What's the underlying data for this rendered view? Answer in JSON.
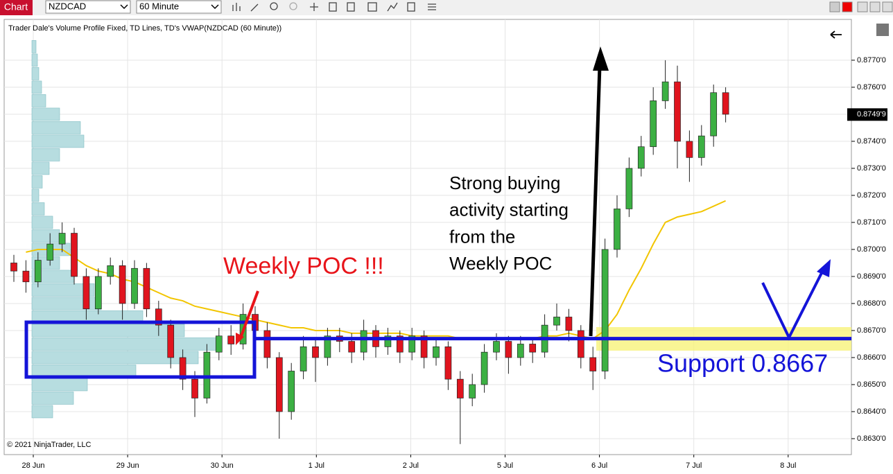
{
  "toolbar": {
    "tab": "Chart",
    "symbol": "NZDCAD",
    "interval": "60 Minute"
  },
  "copyright": "© 2021 NinjaTrader, LLC",
  "chart_data": {
    "type": "candlestick",
    "title": "Trader Dale's Volume Profile Fixed, TD Lines, TD's VWAP(NZDCAD (60 Minute))",
    "xtick_labels": [
      "28 Jun",
      "29 Jun",
      "30 Jun",
      "1 Jul",
      "2 Jul",
      "5 Jul",
      "6 Jul",
      "7 Jul",
      "8 Jul"
    ],
    "ylim": [
      0.86241,
      0.87851
    ],
    "yticks": [
      {
        "value": 0.863,
        "label": "0.8630'0"
      },
      {
        "value": 0.864,
        "label": "0.8640'0"
      },
      {
        "value": 0.865,
        "label": "0.8650'0"
      },
      {
        "value": 0.866,
        "label": "0.8660'0"
      },
      {
        "value": 0.867,
        "label": "0.8670'0"
      },
      {
        "value": 0.868,
        "label": "0.8680'0"
      },
      {
        "value": 0.869,
        "label": "0.8690'0"
      },
      {
        "value": 0.87,
        "label": "0.8700'0"
      },
      {
        "value": 0.871,
        "label": "0.8710'0"
      },
      {
        "value": 0.872,
        "label": "0.8720'0"
      },
      {
        "value": 0.873,
        "label": "0.8730'0"
      },
      {
        "value": 0.874,
        "label": "0.8740'0"
      },
      {
        "value": 0.875,
        "label": "0.8750'0"
      },
      {
        "value": 0.876,
        "label": "0.8760'0"
      },
      {
        "value": 0.877,
        "label": "0.8770'0"
      }
    ],
    "grid": true,
    "up_color": "#3cb043",
    "down_color": "#e0141e",
    "open": [
      0.8695,
      0.8692,
      0.8688,
      0.8696,
      0.8702,
      0.8706,
      0.869,
      0.8678,
      0.869,
      0.8694,
      0.868,
      0.8693,
      0.8678,
      0.8672,
      0.866,
      0.8652,
      0.8645,
      0.8662,
      0.8668,
      0.8665,
      0.8676,
      0.867,
      0.866,
      0.864,
      0.8655,
      0.8664,
      0.866,
      0.8668,
      0.8666,
      0.8662,
      0.867,
      0.8664,
      0.8668,
      0.8662,
      0.8668,
      0.866,
      0.8664,
      0.8652,
      0.8645,
      0.865,
      0.8662,
      0.8666,
      0.866,
      0.8665,
      0.8662,
      0.8672,
      0.8675,
      0.867,
      0.866,
      0.8655,
      0.87,
      0.8715,
      0.873,
      0.8738,
      0.8755,
      0.8762,
      0.874,
      0.8734,
      0.8742,
      0.8758
    ],
    "high": [
      0.8698,
      0.8696,
      0.8699,
      0.8706,
      0.871,
      0.8708,
      0.8693,
      0.8693,
      0.8697,
      0.8696,
      0.8696,
      0.8695,
      0.8681,
      0.8674,
      0.8663,
      0.8655,
      0.8665,
      0.8671,
      0.8672,
      0.868,
      0.8679,
      0.8673,
      0.8662,
      0.8658,
      0.8668,
      0.8667,
      0.8671,
      0.8671,
      0.8669,
      0.8674,
      0.8672,
      0.8671,
      0.867,
      0.8671,
      0.867,
      0.8667,
      0.8666,
      0.8655,
      0.8654,
      0.8665,
      0.8669,
      0.8668,
      0.8668,
      0.8667,
      0.8676,
      0.868,
      0.8678,
      0.8672,
      0.8664,
      0.8704,
      0.872,
      0.8734,
      0.8742,
      0.876,
      0.877,
      0.8768,
      0.8744,
      0.8746,
      0.8761,
      0.876
    ],
    "low": [
      0.8688,
      0.8684,
      0.8686,
      0.8694,
      0.8699,
      0.8687,
      0.8674,
      0.8676,
      0.8687,
      0.8674,
      0.8678,
      0.8675,
      0.8668,
      0.8656,
      0.8648,
      0.8638,
      0.8643,
      0.8659,
      0.8661,
      0.8663,
      0.8666,
      0.8656,
      0.863,
      0.8637,
      0.8652,
      0.8651,
      0.8657,
      0.8662,
      0.8658,
      0.8659,
      0.866,
      0.8661,
      0.8658,
      0.8659,
      0.8656,
      0.8657,
      0.8648,
      0.8628,
      0.8642,
      0.8647,
      0.8659,
      0.8654,
      0.8657,
      0.8658,
      0.866,
      0.867,
      0.8666,
      0.8656,
      0.8648,
      0.8652,
      0.8697,
      0.8712,
      0.8727,
      0.8735,
      0.8752,
      0.873,
      0.8725,
      0.8731,
      0.8738,
      0.8747
    ],
    "close": [
      0.8692,
      0.8688,
      0.8696,
      0.8702,
      0.8706,
      0.869,
      0.8678,
      0.869,
      0.8694,
      0.868,
      0.8693,
      0.8678,
      0.8672,
      0.866,
      0.8652,
      0.8645,
      0.8662,
      0.8668,
      0.8665,
      0.8676,
      0.867,
      0.866,
      0.864,
      0.8655,
      0.8664,
      0.866,
      0.8668,
      0.8666,
      0.8662,
      0.867,
      0.8664,
      0.8668,
      0.8662,
      0.8668,
      0.866,
      0.8664,
      0.8652,
      0.8645,
      0.865,
      0.8662,
      0.8666,
      0.866,
      0.8665,
      0.8662,
      0.8672,
      0.8675,
      0.867,
      0.866,
      0.8655,
      0.87,
      0.8715,
      0.873,
      0.8738,
      0.8755,
      0.8762,
      0.874,
      0.8734,
      0.8742,
      0.8758,
      0.875
    ],
    "vwap": {
      "color": "#f2c500",
      "values": [
        null,
        0.8699,
        0.87,
        0.87,
        0.87,
        0.8697,
        0.8694,
        0.8692,
        0.8691,
        0.8689,
        0.8688,
        0.8686,
        0.8684,
        0.8682,
        0.8681,
        0.8679,
        0.8678,
        0.8677,
        0.8676,
        0.8675,
        0.8674,
        0.8673,
        0.8672,
        0.8671,
        0.8671,
        0.867,
        0.867,
        0.867,
        0.8669,
        0.8669,
        0.8669,
        0.8669,
        0.8669,
        0.8668,
        0.8668,
        0.8668,
        0.8668,
        0.8667,
        0.8667,
        0.8667,
        0.8667,
        0.8667,
        0.8667,
        0.8667,
        0.8668,
        0.8668,
        0.8669,
        0.8668,
        0.8667,
        0.867,
        0.8676,
        0.8685,
        0.8693,
        0.8702,
        0.871,
        0.8712,
        0.8713,
        0.8714,
        0.8716,
        0.8718
      ]
    },
    "volume_profile": {
      "color": "#b7dde0",
      "prices": [
        0.8775,
        0.877,
        0.8765,
        0.876,
        0.8755,
        0.875,
        0.8745,
        0.874,
        0.8735,
        0.873,
        0.8725,
        0.872,
        0.8715,
        0.871,
        0.8705,
        0.87,
        0.8695,
        0.869,
        0.8685,
        0.868,
        0.8675,
        0.867,
        0.8665,
        0.866,
        0.8655,
        0.865,
        0.8645,
        0.864
      ],
      "values": [
        6,
        8,
        10,
        14,
        20,
        40,
        70,
        75,
        40,
        25,
        15,
        10,
        18,
        30,
        40,
        55,
        40,
        60,
        90,
        100,
        160,
        220,
        270,
        240,
        150,
        80,
        60,
        30
      ]
    },
    "current_price": {
      "value": 0.87499,
      "label": "0.8749'9"
    },
    "annotations": {
      "poc": "Weekly POC !!!",
      "buying": [
        "Strong buying",
        "activity starting",
        "from the",
        "Weekly POC"
      ],
      "support": {
        "label": "Support 0.8667",
        "value": 0.8667
      }
    }
  }
}
